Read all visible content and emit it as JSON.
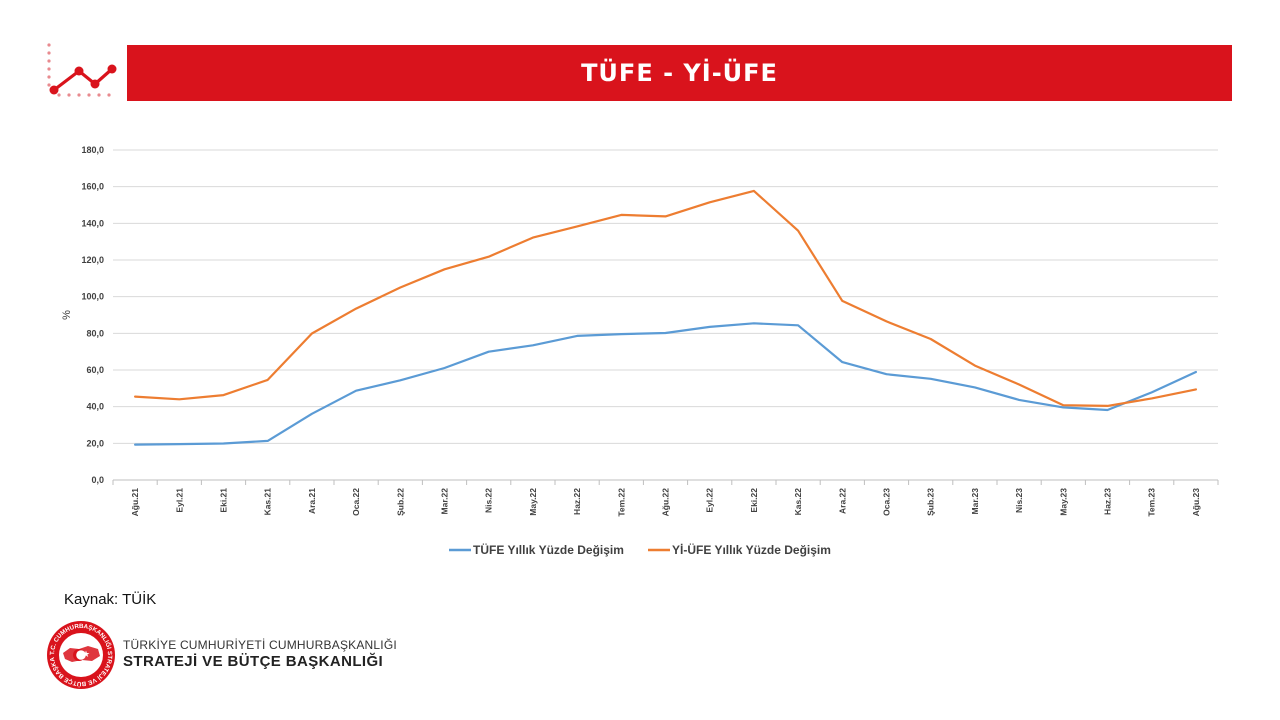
{
  "header": {
    "title": "TÜFE - Yİ-ÜFE",
    "brand_color": "#d9131c"
  },
  "chart_data": {
    "type": "line",
    "ylabel": "%",
    "ylim": [
      0,
      180
    ],
    "yticks": [
      "180,0",
      "160,0",
      "140,0",
      "120,0",
      "100,0",
      "80,0",
      "60,0",
      "40,0",
      "20,0",
      "0,0"
    ],
    "grid": true,
    "legend_position": "bottom",
    "categories": [
      "Ağu.21",
      "Eyl.21",
      "Eki.21",
      "Kas.21",
      "Ara.21",
      "Oca.22",
      "Şub.22",
      "Mar.22",
      "Nis.22",
      "May.22",
      "Haz.22",
      "Tem.22",
      "Ağu.22",
      "Eyl.22",
      "Eki.22",
      "Kas.22",
      "Ara.22",
      "Oca.23",
      "Şub.23",
      "Mar.23",
      "Nis.23",
      "May.23",
      "Haz.23",
      "Tem.23",
      "Ağu.23"
    ],
    "series": [
      {
        "name": "TÜFE Yıllık Yüzde Değişim",
        "color": "#5b9bd5",
        "values": [
          19.3,
          19.6,
          19.9,
          21.3,
          36.1,
          48.7,
          54.4,
          61.1,
          70.0,
          73.5,
          78.6,
          79.6,
          80.2,
          83.5,
          85.5,
          84.4,
          64.3,
          57.7,
          55.2,
          50.5,
          43.7,
          39.6,
          38.2,
          47.8,
          58.9
        ]
      },
      {
        "name": "Yİ-ÜFE Yıllık Yüzde Değişim",
        "color": "#ed7d31",
        "values": [
          45.5,
          44.0,
          46.3,
          54.6,
          79.9,
          93.5,
          105.0,
          114.9,
          121.8,
          132.2,
          138.3,
          144.6,
          143.8,
          151.5,
          157.7,
          136.0,
          97.7,
          86.5,
          76.9,
          62.4,
          52.1,
          40.8,
          40.4,
          44.5,
          49.4
        ]
      }
    ]
  },
  "footer": {
    "source": "Kaynak: TÜİK",
    "org_line1": "TÜRKİYE CUMHURİYETİ CUMHURBAŞKANLIĞI",
    "org_line2": "STRATEJİ VE BÜTÇE BAŞKANLIĞI",
    "logo_ring_text": "T.C. CUMHURBAŞKANLIĞI STRATEJİ VE BÜTÇE BAŞKANLIĞI"
  }
}
